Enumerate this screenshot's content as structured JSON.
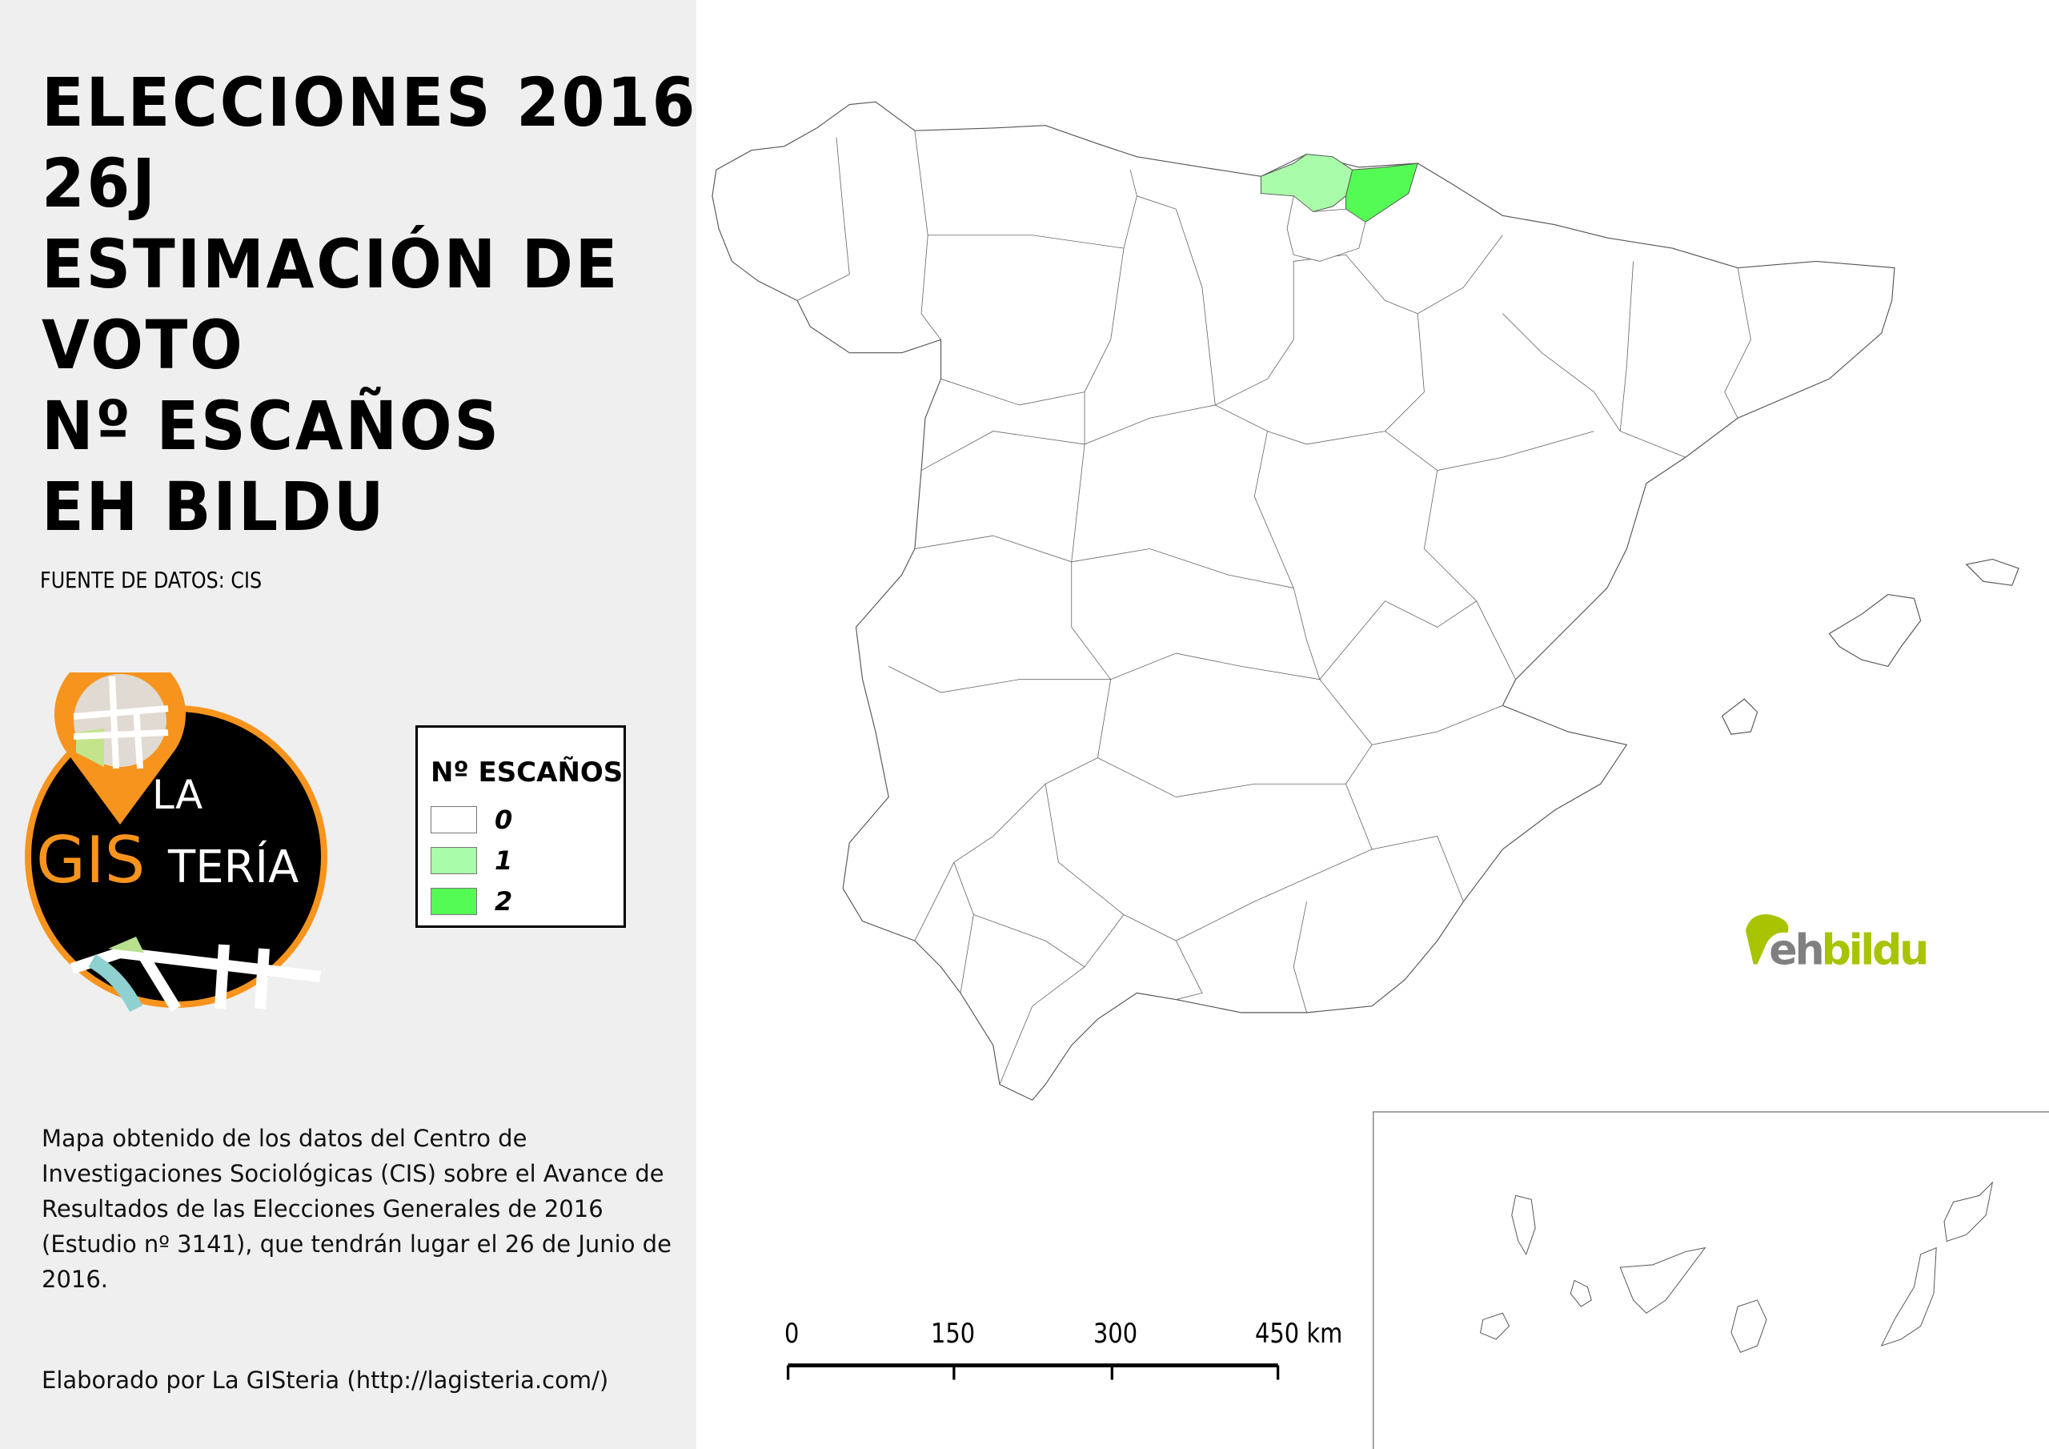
{
  "title_lines": [
    "ELECCIONES 2016",
    "26J",
    "ESTIMACIÓN DE",
    "VOTO",
    "Nº ESCAÑOS",
    "EH BILDU"
  ],
  "source": "FUENTE DE DATOS: CIS",
  "logo": {
    "text_la": "LA",
    "text_gis": "GIS",
    "text_teria": "TERÍA",
    "orange": "#f7941d"
  },
  "legend": {
    "title": "Nº ESCAÑOS",
    "items": [
      {
        "label": "0",
        "color": "#ffffff"
      },
      {
        "label": "1",
        "color": "#a9fca9"
      },
      {
        "label": "2",
        "color": "#55fb55"
      }
    ]
  },
  "map_values": {
    "Bizkaia": 1,
    "Gipuzkoa": 2,
    "other_provinces": 0
  },
  "description": "Mapa obtenido de los datos del Centro de Investigaciones Sociológicas (CIS) sobre el Avance de Resultados de las Elecciones Generales de 2016 (Estudio nº 3141), que tendrán lugar el 26 de Junio de 2016.",
  "credit": "Elaborado por La GISteria (http://lagisteria.com/)",
  "scale_bar": {
    "labels": [
      "0",
      "150",
      "300",
      "450 km"
    ]
  },
  "party_logo": {
    "text_eh": "eh",
    "text_bildu": "bildu",
    "green": "#a8c300",
    "grey": "#808080"
  }
}
